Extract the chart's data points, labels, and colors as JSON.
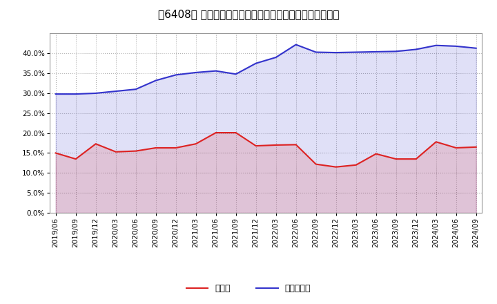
{
  "title": "［6408］ 現頒金、有利子負債の総資産に対する比率の推移",
  "x_labels": [
    "2019/06",
    "2019/09",
    "2019/12",
    "2020/03",
    "2020/06",
    "2020/09",
    "2020/12",
    "2021/03",
    "2021/06",
    "2021/09",
    "2021/12",
    "2022/03",
    "2022/06",
    "2022/09",
    "2022/12",
    "2023/03",
    "2023/06",
    "2023/09",
    "2023/12",
    "2024/03",
    "2024/06",
    "2024/09"
  ],
  "cash": [
    0.15,
    0.135,
    0.173,
    0.153,
    0.155,
    0.163,
    0.163,
    0.173,
    0.201,
    0.201,
    0.168,
    0.17,
    0.171,
    0.122,
    0.115,
    0.12,
    0.148,
    0.135,
    0.135,
    0.178,
    0.163,
    0.165
  ],
  "debt": [
    0.298,
    0.298,
    0.3,
    0.305,
    0.31,
    0.332,
    0.346,
    0.352,
    0.356,
    0.348,
    0.375,
    0.39,
    0.422,
    0.403,
    0.402,
    0.403,
    0.404,
    0.405,
    0.41,
    0.42,
    0.418,
    0.413
  ],
  "cash_color": "#dd2222",
  "debt_color": "#3333cc",
  "background_color": "#ffffff",
  "plot_bg_color": "#ffffff",
  "grid_color": "#aaaaaa",
  "ylim": [
    0.0,
    0.45
  ],
  "yticks": [
    0.0,
    0.05,
    0.1,
    0.15,
    0.2,
    0.25,
    0.3,
    0.35,
    0.4
  ],
  "legend_cash": "現頒金",
  "legend_debt": "有利子負債",
  "title_fontsize": 11,
  "axis_fontsize": 7.5,
  "legend_fontsize": 9
}
